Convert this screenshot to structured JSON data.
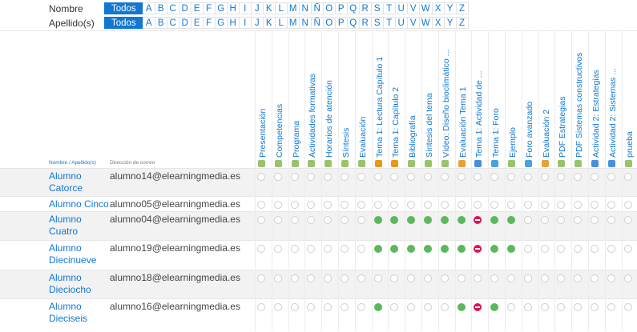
{
  "filters": {
    "first_name_label": "Nombre",
    "last_name_label": "Apellido(s)",
    "all_label": "Todos",
    "letters": [
      "A",
      "B",
      "C",
      "D",
      "E",
      "F",
      "G",
      "H",
      "I",
      "J",
      "K",
      "L",
      "M",
      "N",
      "Ñ",
      "O",
      "P",
      "Q",
      "R",
      "S",
      "T",
      "U",
      "V",
      "W",
      "X",
      "Y",
      "Z"
    ]
  },
  "sort": {
    "first": "Nombre",
    "sep": " / ",
    "last": "Apellido(s)",
    "email_header": "Dirección de correo"
  },
  "activities": [
    {
      "label": "Presentación",
      "icon": "page-icon"
    },
    {
      "label": "Competencias",
      "icon": "page-icon"
    },
    {
      "label": "Programa",
      "icon": "page-icon"
    },
    {
      "label": "Actividades formativas",
      "icon": "page-icon"
    },
    {
      "label": "Horarios de atención",
      "icon": "page-icon"
    },
    {
      "label": "Síntesis",
      "icon": "page-icon"
    },
    {
      "label": "Evaluación",
      "icon": "page-icon"
    },
    {
      "label": "Tema 1: Lectura Capítulo 1",
      "icon": "file-icon"
    },
    {
      "label": "Tema 1: Capítulo 2",
      "icon": "file-icon"
    },
    {
      "label": "Bibliografía",
      "icon": "page-icon"
    },
    {
      "label": "Síntesis del tema",
      "icon": "page-icon"
    },
    {
      "label": "Vídeo: Diseño bioclimático ...",
      "icon": "page-icon"
    },
    {
      "label": "Evaluación Tema 1",
      "icon": "quiz-icon"
    },
    {
      "label": "Tema 1: Actividad de ...",
      "icon": "assign-icon"
    },
    {
      "label": "Tema 1: Foro",
      "icon": "forum-icon"
    },
    {
      "label": "Ejemplo",
      "icon": "page-icon"
    },
    {
      "label": "Foro avanzado",
      "icon": "forum-icon"
    },
    {
      "label": "Evaluación 2",
      "icon": "quiz-icon"
    },
    {
      "label": "PDF Estrategias",
      "icon": "page-icon"
    },
    {
      "label": "PDF Sistemas constructivos",
      "icon": "page-icon"
    },
    {
      "label": "Actividad 2: Estrategias",
      "icon": "assign-icon"
    },
    {
      "label": "Actividad 2: Sistemas ...",
      "icon": "assign-icon"
    },
    {
      "label": "prueba",
      "icon": "page-icon"
    }
  ],
  "students": [
    {
      "name": "Alumno Catorce",
      "email": "alumno14@elearningmedia.es",
      "status": "nnnnnnnnnnnnnnnnnnnnnnn"
    },
    {
      "name": "Alumno Cinco",
      "email": "alumno05@elearningmedia.es",
      "status": "nnnnnnnnnnnnnnnnnnnnnnn"
    },
    {
      "name": "Alumno Cuatro",
      "email": "alumno04@elearningmedia.es",
      "status": "nnnnnnnddddddfddnnnnnnn"
    },
    {
      "name": "Alumno Diecinueve",
      "email": "alumno19@elearningmedia.es",
      "status": "nnnnnnnddddddfddnnnnnnn"
    },
    {
      "name": "Alumno Dieciocho",
      "email": "alumno18@elearningmedia.es",
      "status": "nnnnnnnnnnnnnnnnnnnnnnn"
    },
    {
      "name": "Alumno Dieciseis",
      "email": "alumno16@elearningmedia.es",
      "status": "nnnnnnndnnnndfdnnnnnnnn"
    }
  ],
  "colors": {
    "link": "#1177d1",
    "complete": "#5cb85c",
    "failed": "#d9164f"
  }
}
